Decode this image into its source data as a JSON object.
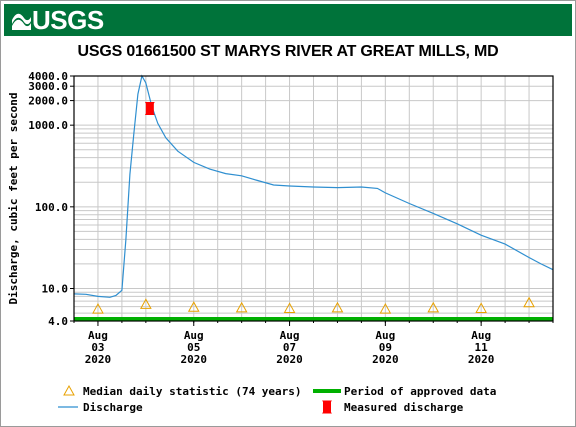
{
  "banner": {
    "logo_text": "USGS",
    "brand_color": "#00733a"
  },
  "chart_data": {
    "type": "line",
    "title": "USGS 01661500 ST MARYS RIVER AT GREAT MILLS, MD",
    "ylabel": "Discharge, cubic feet per second",
    "xlabel": "",
    "y_scale": "log",
    "ylim": [
      4.0,
      4000.0
    ],
    "xlim": [
      "2020-08-02 12:00",
      "2020-08-12 12:00"
    ],
    "y_ticks": [
      "4.0",
      "10.0",
      "100.0",
      "1000.0",
      "2000.0",
      "3000.0",
      "4000.0"
    ],
    "x_ticks": [
      {
        "month": "Aug",
        "day": "03",
        "year": "2020"
      },
      {
        "month": "Aug",
        "day": "05",
        "year": "2020"
      },
      {
        "month": "Aug",
        "day": "07",
        "year": "2020"
      },
      {
        "month": "Aug",
        "day": "09",
        "year": "2020"
      },
      {
        "month": "Aug",
        "day": "11",
        "year": "2020"
      }
    ],
    "grid": true,
    "legend_position": "bottom",
    "legend": [
      {
        "label": "Median daily statistic (74 years)",
        "symbol": "triangle",
        "color": "#e8a100"
      },
      {
        "label": "Period of approved data",
        "symbol": "thick-line",
        "color": "#00b000"
      },
      {
        "label": "Discharge",
        "symbol": "line",
        "color": "#2f8fd0"
      },
      {
        "label": "Measured discharge",
        "symbol": "bowtie",
        "color": "#ff0000"
      }
    ],
    "series": [
      {
        "name": "Discharge",
        "color": "#2f8fd0",
        "points": [
          [
            "2020-08-02 12:00",
            8.6
          ],
          [
            "2020-08-02 18:00",
            8.5
          ],
          [
            "2020-08-03 00:00",
            8.0
          ],
          [
            "2020-08-03 06:00",
            7.8
          ],
          [
            "2020-08-03 09:00",
            8.2
          ],
          [
            "2020-08-03 12:00",
            9.5
          ],
          [
            "2020-08-03 14:00",
            40
          ],
          [
            "2020-08-03 16:00",
            250
          ],
          [
            "2020-08-03 18:00",
            800
          ],
          [
            "2020-08-03 20:00",
            2400
          ],
          [
            "2020-08-03 22:00",
            4000
          ],
          [
            "2020-08-04 00:00",
            3300
          ],
          [
            "2020-08-04 03:00",
            1700
          ],
          [
            "2020-08-04 06:00",
            1050
          ],
          [
            "2020-08-04 10:00",
            700
          ],
          [
            "2020-08-04 16:00",
            480
          ],
          [
            "2020-08-05 00:00",
            350
          ],
          [
            "2020-08-05 08:00",
            290
          ],
          [
            "2020-08-05 16:00",
            255
          ],
          [
            "2020-08-06 00:00",
            240
          ],
          [
            "2020-08-06 08:00",
            210
          ],
          [
            "2020-08-06 16:00",
            185
          ],
          [
            "2020-08-07 00:00",
            180
          ],
          [
            "2020-08-07 12:00",
            175
          ],
          [
            "2020-08-08 00:00",
            172
          ],
          [
            "2020-08-08 12:00",
            175
          ],
          [
            "2020-08-08 20:00",
            168
          ],
          [
            "2020-08-09 00:00",
            148
          ],
          [
            "2020-08-09 12:00",
            110
          ],
          [
            "2020-08-10 00:00",
            83
          ],
          [
            "2020-08-10 12:00",
            62
          ],
          [
            "2020-08-11 00:00",
            45
          ],
          [
            "2020-08-11 12:00",
            35
          ],
          [
            "2020-08-12 00:00",
            24
          ],
          [
            "2020-08-12 06:00",
            20
          ],
          [
            "2020-08-12 12:00",
            17
          ]
        ]
      },
      {
        "name": "Measured discharge",
        "color": "#ff0000",
        "points": [
          [
            "2020-08-04 02:00",
            1600
          ]
        ]
      },
      {
        "name": "Median daily statistic (74 years)",
        "color": "#e8a100",
        "points": [
          [
            "2020-08-03 00:00",
            5.6
          ],
          [
            "2020-08-04 00:00",
            6.4
          ],
          [
            "2020-08-05 00:00",
            5.9
          ],
          [
            "2020-08-06 00:00",
            5.8
          ],
          [
            "2020-08-07 00:00",
            5.7
          ],
          [
            "2020-08-08 00:00",
            5.8
          ],
          [
            "2020-08-09 00:00",
            5.6
          ],
          [
            "2020-08-10 00:00",
            5.8
          ],
          [
            "2020-08-11 00:00",
            5.7
          ],
          [
            "2020-08-12 00:00",
            6.7
          ]
        ]
      }
    ],
    "approved_period": [
      "2020-08-02 12:00",
      "2020-08-12 12:00"
    ]
  }
}
